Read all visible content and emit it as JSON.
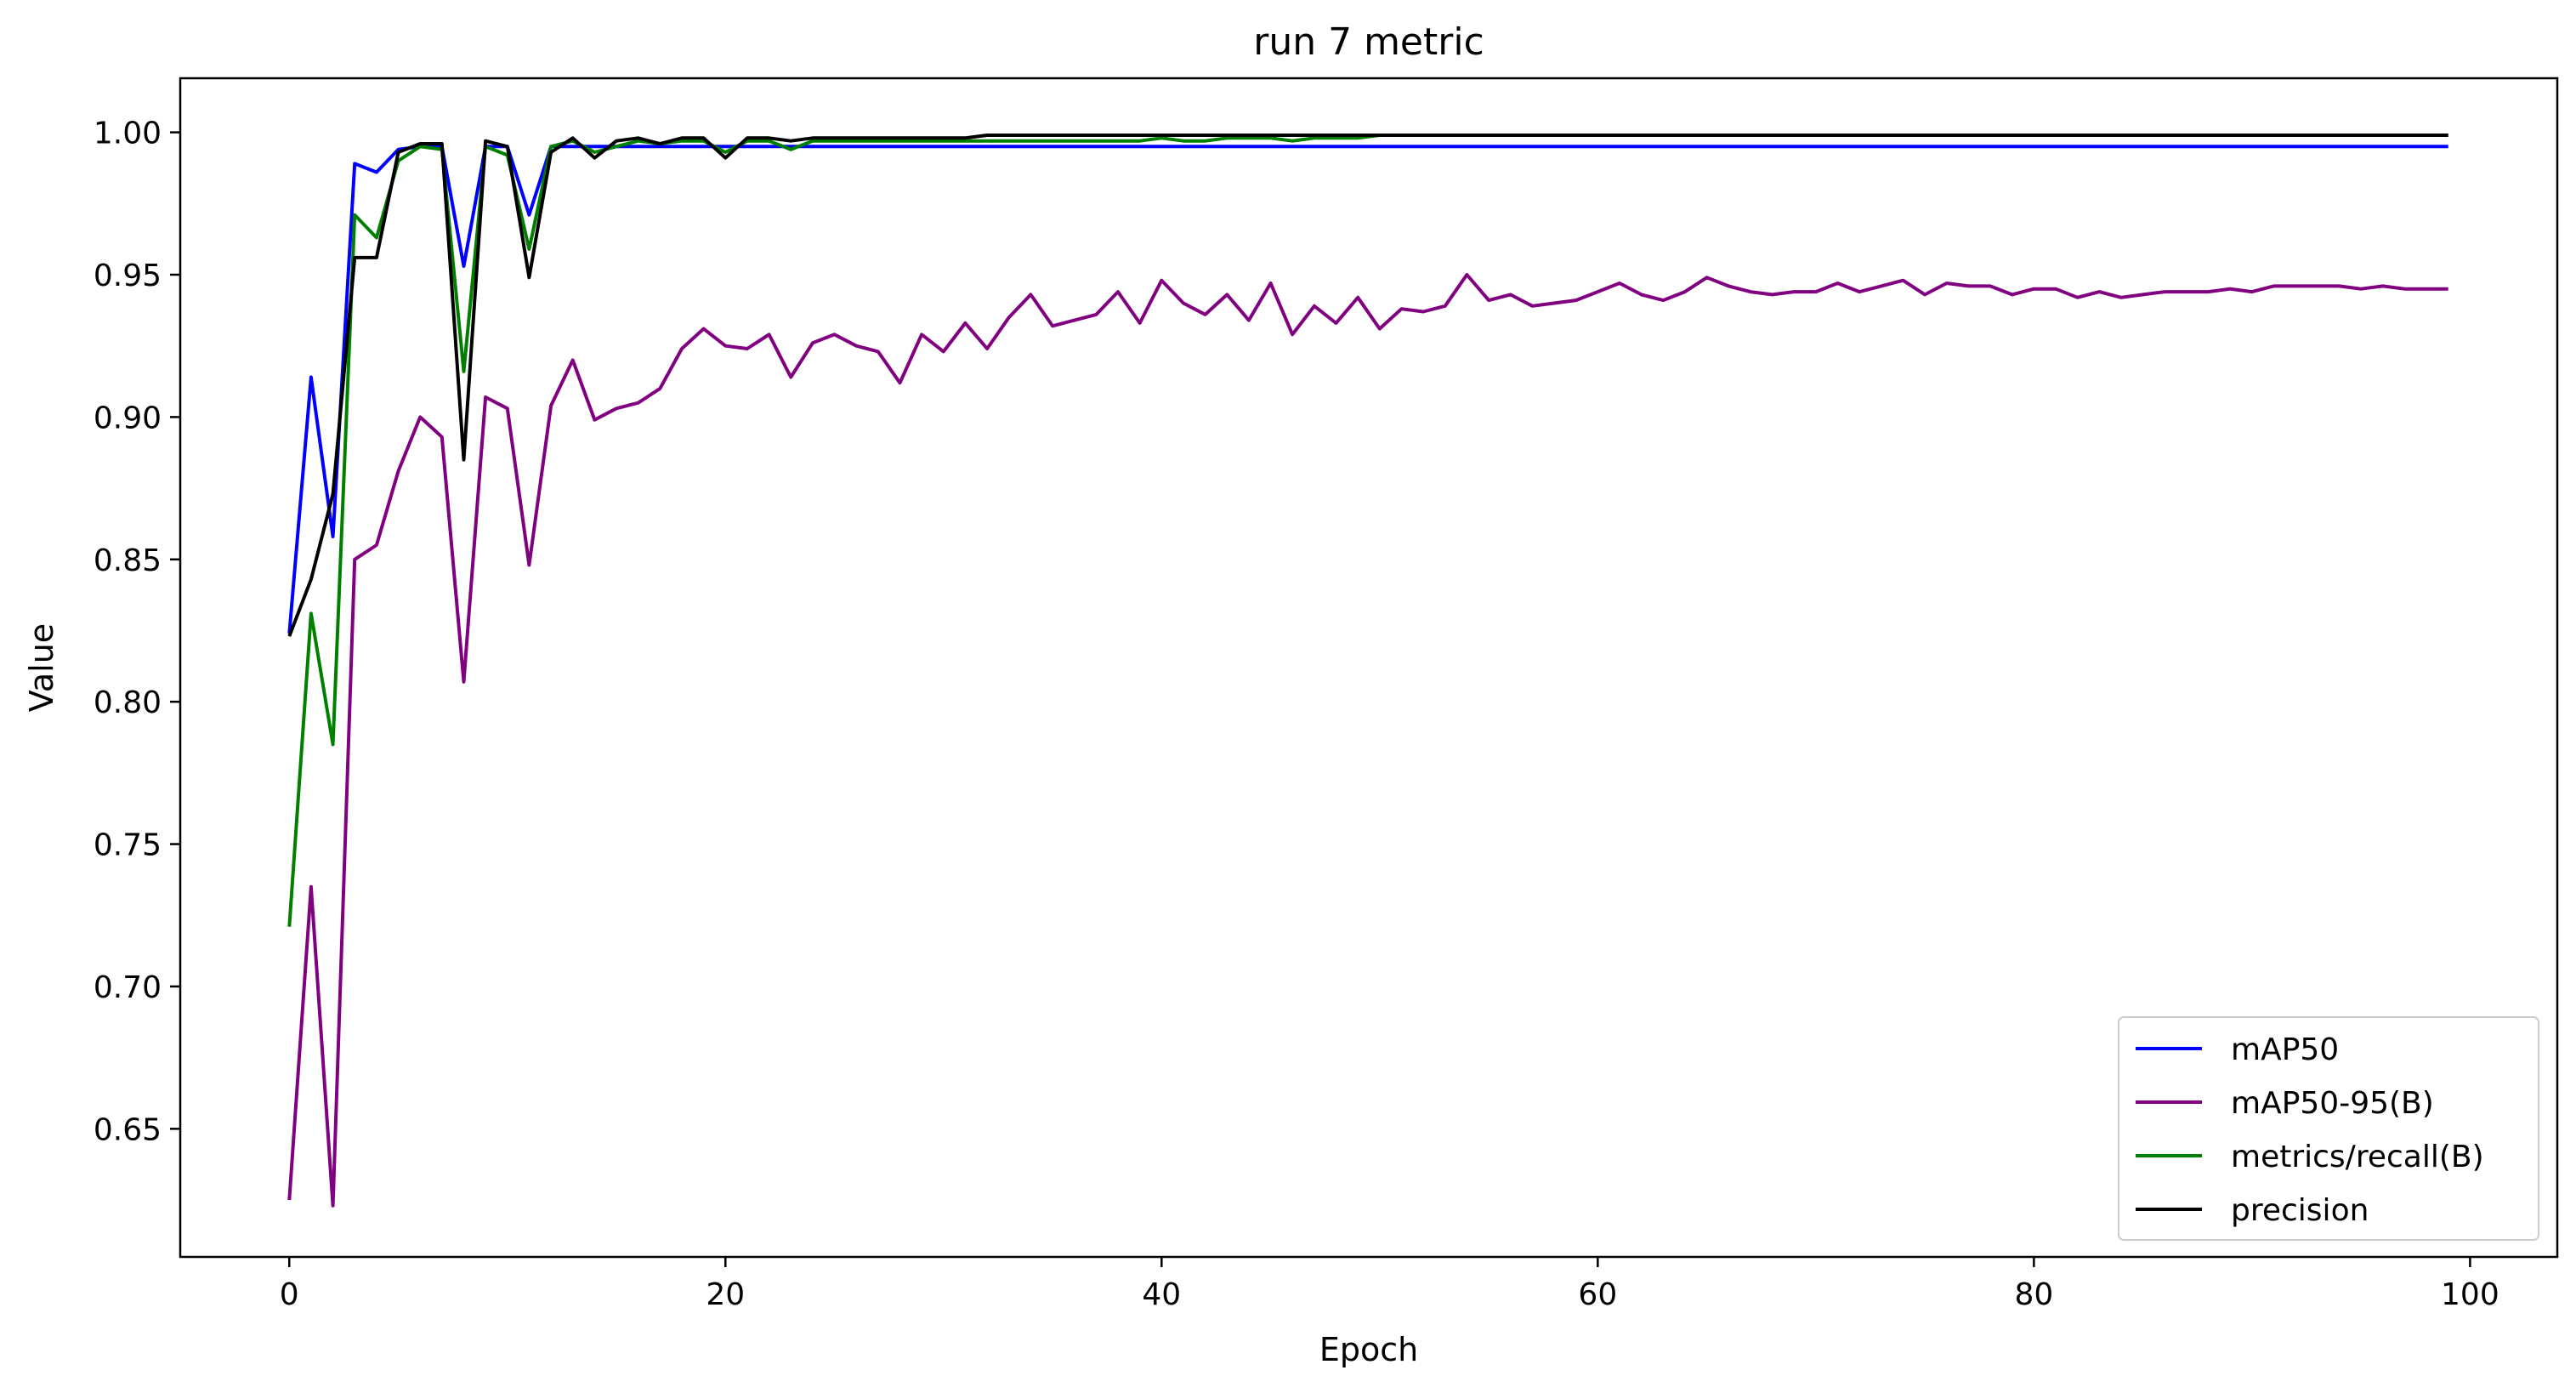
{
  "chart_data": {
    "type": "line",
    "title": "run 7 metric",
    "xlabel": "Epoch",
    "ylabel": "Value",
    "xlim": [
      -5,
      104
    ],
    "ylim": [
      0.605,
      1.019
    ],
    "xticks": [
      0,
      20,
      40,
      60,
      80,
      100
    ],
    "xtick_labels": [
      "0",
      "20",
      "40",
      "60",
      "80",
      "100"
    ],
    "yticks": [
      0.65,
      0.7,
      0.75,
      0.8,
      0.85,
      0.9,
      0.95,
      1.0
    ],
    "ytick_labels": [
      "0.65",
      "0.70",
      "0.75",
      "0.80",
      "0.85",
      "0.90",
      "0.95",
      "1.00"
    ],
    "grid": false,
    "legend_position": "lower-right",
    "series": [
      {
        "name": "mAP50",
        "color": "#0000ff",
        "values": [
          0.824,
          0.914,
          0.858,
          0.989,
          0.986,
          0.994,
          0.995,
          0.995,
          0.953,
          0.995,
          0.995,
          0.971,
          0.995,
          0.995,
          0.995,
          0.995,
          0.995,
          0.995,
          0.995,
          0.995,
          0.995,
          0.995,
          0.995,
          0.995,
          0.995,
          0.995,
          0.995,
          0.995,
          0.995,
          0.995,
          0.995,
          0.995,
          0.995,
          0.995,
          0.995,
          0.995,
          0.995,
          0.995,
          0.995,
          0.995,
          0.995,
          0.995,
          0.995,
          0.995,
          0.995,
          0.995,
          0.995,
          0.995,
          0.995,
          0.995,
          0.995,
          0.995,
          0.995,
          0.995,
          0.995,
          0.995,
          0.995,
          0.995,
          0.995,
          0.995,
          0.995,
          0.995,
          0.995,
          0.995,
          0.995,
          0.995,
          0.995,
          0.995,
          0.995,
          0.995,
          0.995,
          0.995,
          0.995,
          0.995,
          0.995,
          0.995,
          0.995,
          0.995,
          0.995,
          0.995,
          0.995,
          0.995,
          0.995,
          0.995,
          0.995,
          0.995,
          0.995,
          0.995,
          0.995,
          0.995,
          0.995,
          0.995,
          0.995,
          0.995,
          0.995,
          0.995,
          0.995,
          0.995,
          0.995,
          0.995
        ]
      },
      {
        "name": "mAP50-95(B)",
        "color": "#800080",
        "values": [
          0.625,
          0.735,
          0.623,
          0.85,
          0.855,
          0.881,
          0.9,
          0.893,
          0.807,
          0.907,
          0.903,
          0.848,
          0.904,
          0.92,
          0.899,
          0.903,
          0.905,
          0.91,
          0.924,
          0.931,
          0.925,
          0.924,
          0.929,
          0.914,
          0.926,
          0.929,
          0.925,
          0.923,
          0.912,
          0.929,
          0.923,
          0.933,
          0.924,
          0.935,
          0.943,
          0.932,
          0.934,
          0.936,
          0.944,
          0.933,
          0.948,
          0.94,
          0.936,
          0.943,
          0.934,
          0.947,
          0.929,
          0.939,
          0.933,
          0.942,
          0.931,
          0.938,
          0.937,
          0.939,
          0.95,
          0.941,
          0.943,
          0.939,
          0.94,
          0.941,
          0.944,
          0.947,
          0.943,
          0.941,
          0.944,
          0.949,
          0.946,
          0.944,
          0.943,
          0.944,
          0.944,
          0.947,
          0.944,
          0.946,
          0.948,
          0.943,
          0.947,
          0.946,
          0.946,
          0.943,
          0.945,
          0.945,
          0.942,
          0.944,
          0.942,
          0.943,
          0.944,
          0.944,
          0.944,
          0.945,
          0.944,
          0.946,
          0.946,
          0.946,
          0.946,
          0.945,
          0.946,
          0.945,
          0.945,
          0.945
        ]
      },
      {
        "name": "metrics/recall(B)",
        "color": "#008000",
        "values": [
          0.721,
          0.831,
          0.785,
          0.971,
          0.963,
          0.99,
          0.995,
          0.994,
          0.916,
          0.995,
          0.992,
          0.959,
          0.995,
          0.997,
          0.993,
          0.995,
          0.997,
          0.996,
          0.997,
          0.997,
          0.993,
          0.997,
          0.997,
          0.994,
          0.997,
          0.997,
          0.997,
          0.997,
          0.997,
          0.997,
          0.997,
          0.997,
          0.997,
          0.997,
          0.997,
          0.997,
          0.997,
          0.997,
          0.997,
          0.997,
          0.998,
          0.997,
          0.997,
          0.998,
          0.998,
          0.998,
          0.997,
          0.998,
          0.998,
          0.998,
          0.999,
          0.999,
          0.999,
          0.999,
          0.999,
          0.999,
          0.999,
          0.999,
          0.999,
          0.999,
          0.999,
          0.999,
          0.999,
          0.999,
          0.999,
          0.999,
          0.999,
          0.999,
          0.999,
          0.999,
          0.999,
          0.999,
          0.999,
          0.999,
          0.999,
          0.999,
          0.999,
          0.999,
          0.999,
          0.999,
          0.999,
          0.999,
          0.999,
          0.999,
          0.999,
          0.999,
          0.999,
          0.999,
          0.999,
          0.999,
          0.999,
          0.999,
          0.999,
          0.999,
          0.999,
          0.999,
          0.999,
          0.999,
          0.999,
          0.999
        ]
      },
      {
        "name": "precision",
        "color": "#000000",
        "values": [
          0.823,
          0.843,
          0.873,
          0.956,
          0.956,
          0.993,
          0.996,
          0.996,
          0.885,
          0.997,
          0.995,
          0.949,
          0.993,
          0.998,
          0.991,
          0.997,
          0.998,
          0.996,
          0.998,
          0.998,
          0.991,
          0.998,
          0.998,
          0.997,
          0.998,
          0.998,
          0.998,
          0.998,
          0.998,
          0.998,
          0.998,
          0.998,
          0.999,
          0.999,
          0.999,
          0.999,
          0.999,
          0.999,
          0.999,
          0.999,
          0.999,
          0.999,
          0.999,
          0.999,
          0.999,
          0.999,
          0.999,
          0.999,
          0.999,
          0.999,
          0.999,
          0.999,
          0.999,
          0.999,
          0.999,
          0.999,
          0.999,
          0.999,
          0.999,
          0.999,
          0.999,
          0.999,
          0.999,
          0.999,
          0.999,
          0.999,
          0.999,
          0.999,
          0.999,
          0.999,
          0.999,
          0.999,
          0.999,
          0.999,
          0.999,
          0.999,
          0.999,
          0.999,
          0.999,
          0.999,
          0.999,
          0.999,
          0.999,
          0.999,
          0.999,
          0.999,
          0.999,
          0.999,
          0.999,
          0.999,
          0.999,
          0.999,
          0.999,
          0.999,
          0.999,
          0.999,
          0.999,
          0.999,
          0.999,
          0.999
        ]
      }
    ]
  }
}
